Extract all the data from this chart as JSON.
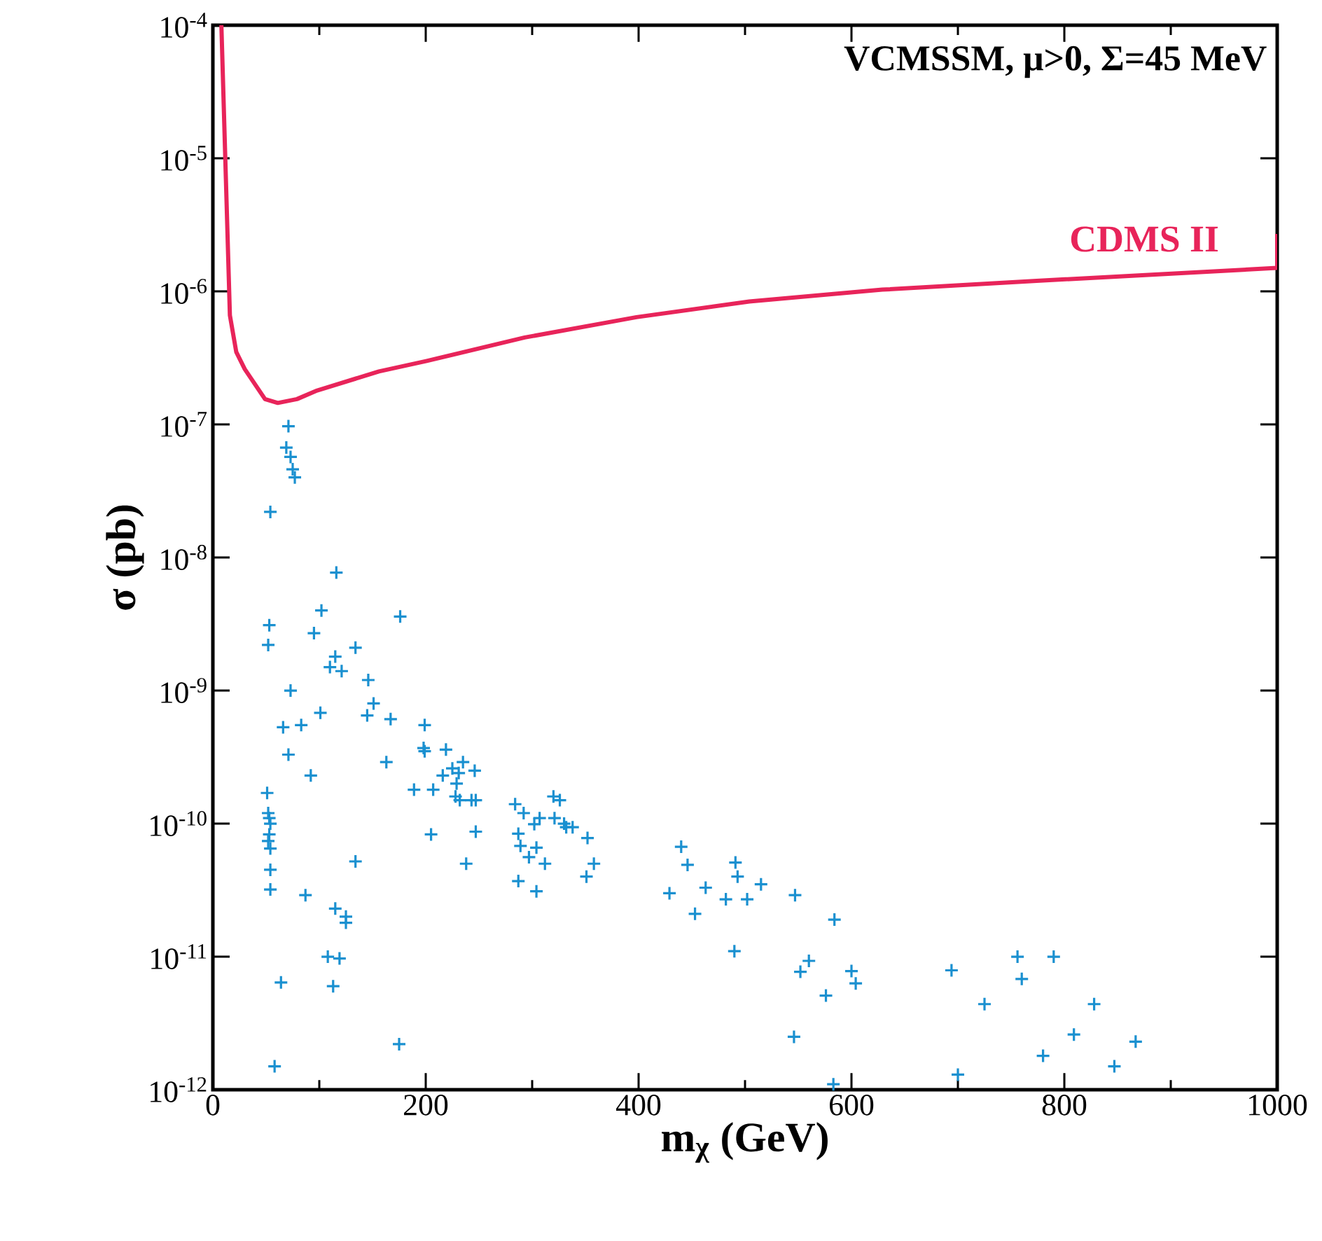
{
  "chart_data": {
    "type": "scatter",
    "xlabel": "m$_{χ}$ (GeV)",
    "ylabel": "σ (pb)",
    "log": "y",
    "annotations": [
      "VCMSSM, μ>0, Σ=45 MeV"
    ],
    "xlim": [
      0,
      1000
    ],
    "ylim": [
      1e-12,
      0.0001
    ],
    "xticks": [
      0,
      200,
      400,
      600,
      800,
      1000
    ],
    "yticks": [
      {
        "value": 1e-12,
        "label": "10$^{-12}$"
      },
      {
        "value": 1e-11,
        "label": "10$^{-11}$"
      },
      {
        "value": 1e-10,
        "label": "10$^{-10}$"
      },
      {
        "value": 1e-09,
        "label": "10$^{-9}$"
      },
      {
        "value": 1e-08,
        "label": "10$^{-8}$"
      },
      {
        "value": 1e-07,
        "label": "10$^{-7}$"
      },
      {
        "value": 1e-06,
        "label": "10$^{-6}$"
      },
      {
        "value": 1e-05,
        "label": "10$^{-5}$"
      },
      {
        "value": 0.0001,
        "label": "10$^{-4}$"
      }
    ],
    "series": [
      {
        "marker": "cross",
        "color": "#1a90d0",
        "x": [
          71,
          69,
          73,
          75,
          77,
          54,
          116,
          102,
          53,
          176,
          95,
          52,
          134,
          115,
          110,
          121,
          146,
          73,
          151,
          101,
          145,
          167,
          199,
          66,
          83,
          71,
          198,
          199,
          219,
          92,
          163,
          225,
          235,
          231,
          216,
          246,
          189,
          207,
          229,
          228,
          232,
          243,
          247,
          51,
          52,
          53,
          54,
          53,
          52,
          54,
          205,
          247,
          284,
          292,
          287,
          289,
          297,
          54,
          134,
          238,
          287,
          54,
          87,
          115,
          125,
          125,
          108,
          119,
          64,
          113,
          175,
          58,
          320,
          326,
          307,
          302,
          321,
          330,
          332,
          338,
          352,
          358,
          351,
          304,
          312,
          304,
          440,
          446,
          429,
          463,
          453,
          482,
          491,
          493,
          502,
          515,
          490,
          547,
          584,
          600,
          604,
          560,
          552,
          576,
          546,
          583,
          694,
          756,
          790,
          760,
          725,
          828,
          809,
          867,
          780,
          847,
          700
        ],
        "values": [
          9.7e-08,
          6.7e-08,
          5.7e-08,
          4.6e-08,
          4e-08,
          2.2e-08,
          7.7e-09,
          4e-09,
          3.1e-09,
          3.6e-09,
          2.7e-09,
          2.2e-09,
          2.1e-09,
          1.8e-09,
          1.5e-09,
          1.4e-09,
          1.2e-09,
          1e-09,
          8e-10,
          6.8e-10,
          6.5e-10,
          6.1e-10,
          5.5e-10,
          5.3e-10,
          5.5e-10,
          3.3e-10,
          3.7e-10,
          3.5e-10,
          3.6e-10,
          2.3e-10,
          2.9e-10,
          2.6e-10,
          2.9e-10,
          2.4e-10,
          2.3e-10,
          2.5e-10,
          1.8e-10,
          1.8e-10,
          2e-10,
          1.6e-10,
          1.5e-10,
          1.5e-10,
          1.5e-10,
          1.7e-10,
          1.2e-10,
          1.1e-10,
          1e-10,
          8.3e-11,
          7.4e-11,
          6.5e-11,
          8.3e-11,
          8.7e-11,
          1.4e-10,
          1.2e-10,
          8.4e-11,
          6.8e-11,
          5.6e-11,
          4.5e-11,
          5.2e-11,
          5e-11,
          3.7e-11,
          3.2e-11,
          2.9e-11,
          2.3e-11,
          2e-11,
          1.8e-11,
          1e-11,
          9.7e-12,
          6.4e-12,
          6e-12,
          2.2e-12,
          1.5e-12,
          1.6e-10,
          1.5e-10,
          1.1e-10,
          9.9e-11,
          1.1e-10,
          1e-10,
          9.4e-11,
          9.4e-11,
          7.8e-11,
          5e-11,
          4e-11,
          6.6e-11,
          5e-11,
          3.1e-11,
          6.7e-11,
          4.9e-11,
          3e-11,
          3.3e-11,
          2.1e-11,
          2.7e-11,
          5.1e-11,
          4e-11,
          2.7e-11,
          3.5e-11,
          1.1e-11,
          2.9e-11,
          1.9e-11,
          7.8e-12,
          6.3e-12,
          9.3e-12,
          7.7e-12,
          5.1e-12,
          2.5e-12,
          1.1e-12,
          7.9e-12,
          1e-11,
          1e-11,
          6.8e-12,
          4.4e-12,
          4.4e-12,
          2.6e-12,
          2.3e-12,
          1.8e-12,
          1.5e-12,
          1.3e-12
        ]
      },
      {
        "type": "line",
        "name": "CDMS II",
        "color": "#e8245a",
        "marker": "none",
        "line_style": "solid",
        "x": [
          8,
          16,
          22,
          30,
          49,
          61,
          79,
          98,
          156,
          201,
          293,
          398,
          504,
          629,
          774,
          1000,
          1000
        ],
        "values": [
          0.0001,
          6.6e-07,
          3.5e-07,
          2.6e-07,
          1.55e-07,
          1.45e-07,
          1.55e-07,
          1.8e-07,
          2.5e-07,
          3e-07,
          4.5e-07,
          6.4e-07,
          8.4e-07,
          1.03e-06,
          1.2e-06,
          1.5e-06,
          2.7e-06
        ]
      }
    ]
  }
}
